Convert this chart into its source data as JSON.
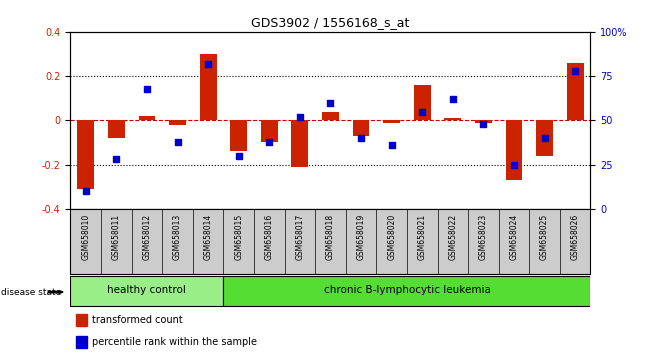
{
  "title": "GDS3902 / 1556168_s_at",
  "samples": [
    "GSM658010",
    "GSM658011",
    "GSM658012",
    "GSM658013",
    "GSM658014",
    "GSM658015",
    "GSM658016",
    "GSM658017",
    "GSM658018",
    "GSM658019",
    "GSM658020",
    "GSM658021",
    "GSM658022",
    "GSM658023",
    "GSM658024",
    "GSM658025",
    "GSM658026"
  ],
  "red_values": [
    -0.31,
    -0.08,
    0.02,
    -0.02,
    0.3,
    -0.14,
    -0.1,
    -0.21,
    0.04,
    -0.07,
    -0.01,
    0.16,
    0.01,
    -0.01,
    -0.27,
    -0.16,
    0.26
  ],
  "blue_values": [
    10,
    28,
    68,
    38,
    82,
    30,
    38,
    52,
    60,
    40,
    36,
    55,
    62,
    48,
    25,
    40,
    78
  ],
  "healthy_count": 5,
  "disease_state_label": "disease state",
  "group1_label": "healthy control",
  "group2_label": "chronic B-lymphocytic leukemia",
  "legend_red": "transformed count",
  "legend_blue": "percentile rank within the sample",
  "ylim_left": [
    -0.4,
    0.4
  ],
  "ylim_right": [
    0,
    100
  ],
  "yticks_left": [
    -0.4,
    -0.2,
    0.0,
    0.2,
    0.4
  ],
  "yticks_right": [
    0,
    25,
    50,
    75,
    100
  ],
  "background_plot": "#ffffff",
  "background_labels": "#cccccc",
  "color_red": "#cc2200",
  "color_blue": "#0000cc",
  "color_group1": "#99ee88",
  "color_group2": "#55dd33",
  "hline_color": "#cc0000",
  "dotted_color": "#000000",
  "bar_width": 0.55
}
